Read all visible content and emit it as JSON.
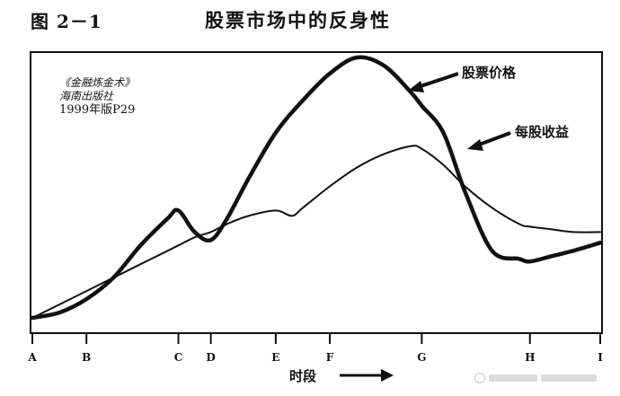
{
  "figure": {
    "label": "图 2－1",
    "title": "股票市场中的反身性"
  },
  "source_note": {
    "line1": "《金融炼金术》",
    "line2": "海南出版社",
    "line3": "1999年版P29"
  },
  "chart_data": {
    "type": "line",
    "title": "股票市场中的反身性",
    "xlabel": "时段",
    "ylabel": "",
    "categories": [
      "A",
      "B",
      "C",
      "D",
      "E",
      "F",
      "G",
      "H",
      "I"
    ],
    "x_positions": [
      0,
      1,
      2.7,
      3.3,
      4.5,
      5.5,
      7.2,
      9.2,
      10.5
    ],
    "xlim": [
      0,
      10.5
    ],
    "ylim": [
      0,
      100
    ],
    "grid": false,
    "legend": "inline annotations with arrows",
    "series": [
      {
        "name": "股票价格",
        "line_weight": "heavy",
        "x": [
          0,
          0.5,
          1,
          1.5,
          2,
          2.5,
          2.7,
          3.0,
          3.3,
          3.6,
          4,
          4.5,
          5,
          5.5,
          6,
          6.5,
          7,
          7.2,
          7.6,
          8,
          8.5,
          9,
          9.2,
          9.6,
          10,
          10.5
        ],
        "y": [
          3,
          5,
          10,
          18,
          30,
          40,
          43,
          35,
          32,
          40,
          55,
          72,
          84,
          94,
          100,
          97,
          87,
          82,
          72,
          50,
          28,
          25,
          24,
          26,
          28,
          31
        ]
      },
      {
        "name": "每股收益",
        "line_weight": "light",
        "x": [
          0,
          0.5,
          1,
          1.5,
          2,
          2.5,
          2.7,
          3.0,
          3.3,
          3.6,
          4,
          4.5,
          4.8,
          5,
          5.5,
          6,
          6.5,
          7,
          7.2,
          7.6,
          8,
          8.5,
          9,
          9.2,
          9.6,
          10,
          10.5
        ],
        "y": [
          3,
          8,
          13,
          18,
          23,
          28,
          30,
          33,
          35,
          38,
          41,
          43,
          41,
          44,
          52,
          59,
          64,
          67,
          66,
          60,
          52,
          44,
          38,
          37,
          36,
          35,
          35
        ]
      }
    ]
  },
  "colors": {
    "ink": "#111111",
    "background": "#ffffff"
  }
}
